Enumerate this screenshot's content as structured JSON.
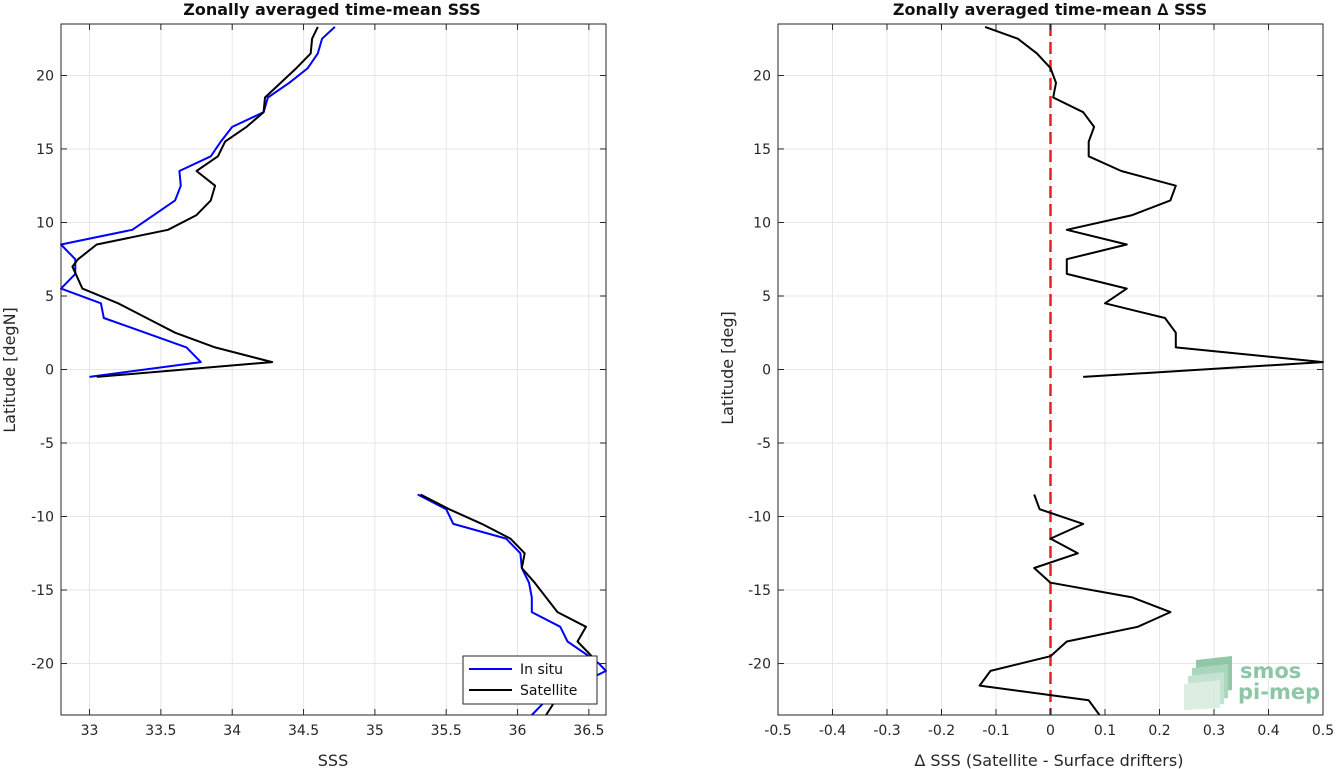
{
  "chart_data": [
    {
      "type": "line",
      "title": "Zonally averaged time-mean SSS",
      "xlabel": "SSS",
      "ylabel": "Latitude [degN]",
      "xlim": [
        32.8,
        36.62
      ],
      "ylim": [
        -23.5,
        23.5
      ],
      "xticks": [
        33,
        33.5,
        34,
        34.5,
        35,
        35.5,
        36,
        36.5
      ],
      "xtick_labels": [
        "33",
        "33.5",
        "34",
        "34.5",
        "35",
        "35.5",
        "36",
        "36.5"
      ],
      "yticks": [
        -20,
        -15,
        -10,
        -5,
        0,
        5,
        10,
        15,
        20
      ],
      "ytick_labels": [
        "-20",
        "-15",
        "-10",
        "-5",
        "0",
        "5",
        "10",
        "15",
        "20"
      ],
      "grid": true,
      "legend_position": "bottom-right",
      "series": [
        {
          "name": "In situ",
          "color": "#0000ff",
          "segments": [
            [
              [
                33.0,
                -0.5
              ],
              [
                33.78,
                0.5
              ],
              [
                33.68,
                1.5
              ],
              [
                33.1,
                3.5
              ],
              [
                33.08,
                4.5
              ],
              [
                32.8,
                5.5
              ],
              [
                32.9,
                6.5
              ],
              [
                32.9,
                7.5
              ],
              [
                32.85,
                8.0
              ],
              [
                32.8,
                8.5
              ],
              [
                33.3,
                9.5
              ],
              [
                33.6,
                11.5
              ],
              [
                33.64,
                12.5
              ],
              [
                33.63,
                13.5
              ],
              [
                33.85,
                14.5
              ],
              [
                33.92,
                15.5
              ],
              [
                34.0,
                16.5
              ],
              [
                34.22,
                17.5
              ],
              [
                34.25,
                18.5
              ],
              [
                34.4,
                19.5
              ],
              [
                34.53,
                20.5
              ],
              [
                34.6,
                21.5
              ],
              [
                34.63,
                22.5
              ],
              [
                34.72,
                23.3
              ]
            ],
            [
              [
                35.3,
                -8.5
              ],
              [
                35.5,
                -9.5
              ],
              [
                35.55,
                -10.5
              ],
              [
                35.92,
                -11.5
              ],
              [
                36.02,
                -12.5
              ],
              [
                36.03,
                -13.5
              ],
              [
                36.08,
                -14.5
              ],
              [
                36.1,
                -15.5
              ],
              [
                36.1,
                -16.5
              ],
              [
                36.3,
                -17.5
              ],
              [
                36.35,
                -18.5
              ],
              [
                36.5,
                -19.5
              ],
              [
                36.57,
                -20.0
              ],
              [
                36.62,
                -20.5
              ],
              [
                36.2,
                -22.5
              ],
              [
                36.1,
                -23.5
              ]
            ]
          ]
        },
        {
          "name": "Satellite",
          "color": "#000000",
          "segments": [
            [
              [
                33.05,
                -0.5
              ],
              [
                34.28,
                0.5
              ],
              [
                33.88,
                1.5
              ],
              [
                33.6,
                2.5
              ],
              [
                33.4,
                3.5
              ],
              [
                33.2,
                4.5
              ],
              [
                32.95,
                5.5
              ],
              [
                32.88,
                7.0
              ],
              [
                32.92,
                7.5
              ],
              [
                33.05,
                8.5
              ],
              [
                33.55,
                9.5
              ],
              [
                33.75,
                10.5
              ],
              [
                33.85,
                11.5
              ],
              [
                33.88,
                12.5
              ],
              [
                33.75,
                13.5
              ],
              [
                33.9,
                14.5
              ],
              [
                33.95,
                15.5
              ],
              [
                34.1,
                16.5
              ],
              [
                34.22,
                17.5
              ],
              [
                34.23,
                18.5
              ],
              [
                34.45,
                20.5
              ],
              [
                34.55,
                21.5
              ],
              [
                34.56,
                22.5
              ],
              [
                34.6,
                23.3
              ]
            ],
            [
              [
                35.32,
                -8.5
              ],
              [
                35.52,
                -9.5
              ],
              [
                35.75,
                -10.5
              ],
              [
                35.95,
                -11.5
              ],
              [
                36.05,
                -12.5
              ],
              [
                36.03,
                -13.5
              ],
              [
                36.12,
                -14.5
              ],
              [
                36.28,
                -16.5
              ],
              [
                36.48,
                -17.5
              ],
              [
                36.42,
                -18.5
              ],
              [
                36.52,
                -19.5
              ],
              [
                36.4,
                -20.5
              ],
              [
                36.3,
                -22.0
              ],
              [
                36.2,
                -23.5
              ]
            ]
          ]
        }
      ]
    },
    {
      "type": "line",
      "title": "Zonally averaged time-mean ∆ SSS",
      "xlabel": "∆ SSS (Satellite - Surface drifters)",
      "ylabel": "Latitude [deg]",
      "xlim": [
        -0.5,
        0.5
      ],
      "ylim": [
        -23.5,
        23.5
      ],
      "xticks": [
        -0.5,
        -0.4,
        -0.3,
        -0.2,
        -0.1,
        0,
        0.1,
        0.2,
        0.3,
        0.4,
        0.5
      ],
      "xtick_labels": [
        "-0.5",
        "-0.4",
        "-0.3",
        "-0.2",
        "-0.1",
        "0",
        "0.1",
        "0.2",
        "0.3",
        "0.4",
        "0.5"
      ],
      "yticks": [
        -20,
        -15,
        -10,
        -5,
        0,
        5,
        10,
        15,
        20
      ],
      "ytick_labels": [
        "-20",
        "-15",
        "-10",
        "-5",
        "0",
        "5",
        "10",
        "15",
        "20"
      ],
      "grid": true,
      "reference_line": {
        "x": 0,
        "color": "#e8202a",
        "style": "dashed"
      },
      "series": [
        {
          "color": "#000000",
          "segments": [
            [
              [
                0.06,
                -0.5
              ],
              [
                0.5,
                0.5
              ],
              [
                0.23,
                1.5
              ],
              [
                0.23,
                2.5
              ],
              [
                0.21,
                3.5
              ],
              [
                0.1,
                4.5
              ],
              [
                0.14,
                5.5
              ],
              [
                0.03,
                6.5
              ],
              [
                0.03,
                7.5
              ],
              [
                0.14,
                8.5
              ],
              [
                0.03,
                9.5
              ],
              [
                0.15,
                10.5
              ],
              [
                0.22,
                11.5
              ],
              [
                0.23,
                12.5
              ],
              [
                0.13,
                13.5
              ],
              [
                0.07,
                14.5
              ],
              [
                0.07,
                15.5
              ],
              [
                0.08,
                16.5
              ],
              [
                0.06,
                17.5
              ],
              [
                0.005,
                18.5
              ],
              [
                0.01,
                19.5
              ],
              [
                0.0,
                20.5
              ],
              [
                -0.025,
                21.5
              ],
              [
                -0.06,
                22.5
              ],
              [
                -0.12,
                23.3
              ]
            ],
            [
              [
                -0.03,
                -8.5
              ],
              [
                -0.02,
                -9.5
              ],
              [
                0.06,
                -10.5
              ],
              [
                0.0,
                -11.5
              ],
              [
                0.05,
                -12.5
              ],
              [
                -0.03,
                -13.5
              ],
              [
                0.0,
                -14.5
              ],
              [
                0.15,
                -15.5
              ],
              [
                0.22,
                -16.5
              ],
              [
                0.16,
                -17.5
              ],
              [
                0.03,
                -18.5
              ],
              [
                0.0,
                -19.5
              ],
              [
                -0.11,
                -20.5
              ],
              [
                -0.13,
                -21.5
              ],
              [
                0.07,
                -22.5
              ],
              [
                0.09,
                -23.5
              ]
            ]
          ]
        }
      ]
    }
  ],
  "logo": {
    "line1": "smos",
    "line2": "pi-mep"
  }
}
